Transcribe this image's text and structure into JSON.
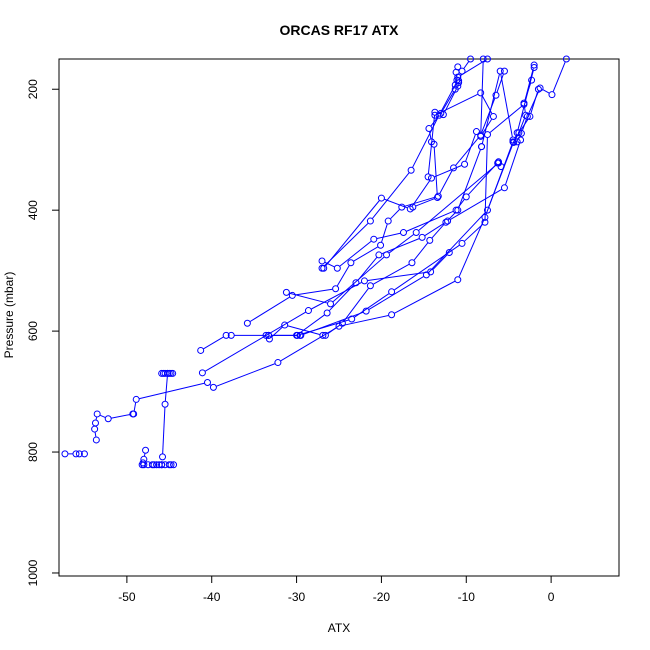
{
  "chart_data": {
    "type": "line",
    "title": "ORCAS RF17 ATX",
    "xlabel": "ATX",
    "ylabel": "Pressure (mbar)",
    "xlim": [
      -58,
      8
    ],
    "ylim": [
      1005,
      150
    ],
    "y_reversed": true,
    "x_ticks": [
      -50,
      -40,
      -30,
      -20,
      -10,
      0
    ],
    "x_tick_labels": [
      "-50",
      "-40",
      "-30",
      "-20",
      "-10",
      "0"
    ],
    "y_ticks": [
      200,
      400,
      600,
      800,
      1000
    ],
    "y_tick_labels": [
      "200",
      "400",
      "600",
      "800",
      "1000"
    ],
    "series_color": "#0000ff",
    "marker": "open-circle",
    "grid": false,
    "series": [
      {
        "x": [
          -45.9,
          -45.5,
          -45.0,
          -44.8,
          -44.5
        ],
        "y": [
          821,
          821,
          821,
          821,
          821
        ]
      },
      {
        "x": [
          -48.0,
          -47.5,
          -47.0,
          -46.8,
          -46.5,
          -46.2,
          -45.9
        ],
        "y": [
          821,
          821,
          821,
          821,
          821,
          821,
          821
        ]
      },
      {
        "x": [
          -55.0,
          -55.6,
          -56.0,
          -57.3
        ],
        "y": [
          803,
          803,
          803,
          803
        ]
      },
      {
        "x": [
          -47.8,
          -48.0,
          -48.1,
          -48.2
        ],
        "y": [
          797,
          812,
          818,
          821
        ]
      },
      {
        "x": [
          -45.8,
          -45.5,
          -45.2,
          -45.0,
          -44.8,
          -44.6
        ],
        "y": [
          808,
          721,
          670,
          670,
          670,
          670
        ]
      },
      {
        "x": [
          -45.9,
          -45.7,
          -45.5,
          -45.2
        ],
        "y": [
          670,
          670,
          670,
          670
        ]
      },
      {
        "x": [
          -53.6,
          -53.8,
          -53.7,
          -53.5,
          -52.2,
          -49.3,
          -49.2,
          -48.9,
          -40.5,
          -39.8,
          -32.2,
          -25.0,
          -18.8,
          -11.0,
          -7.8,
          -4.5,
          -2.5,
          -1.5
        ],
        "y": [
          780,
          762,
          752,
          737,
          745,
          737,
          737,
          713,
          685,
          693,
          652,
          592,
          573,
          515,
          412,
          287,
          245,
          200
        ]
      },
      {
        "x": [
          -41.1,
          -28.6,
          -22.0,
          -14.2,
          -12.0
        ],
        "y": [
          669,
          566,
          517,
          502,
          470
        ]
      },
      {
        "x": [
          -41.3,
          -38.3,
          -37.7,
          -33.3,
          -29.5,
          -21.8,
          -14.7,
          -7.5,
          -4.0,
          -2.0
        ],
        "y": [
          632,
          607,
          607,
          607,
          607,
          567,
          507,
          400,
          272,
          164
        ]
      },
      {
        "x": [
          -33.6,
          -33.3,
          -29.6,
          -29.9,
          -23.5,
          -18.8,
          -10.5,
          -7.8,
          -7.5,
          -3.2,
          -2.0
        ],
        "y": [
          607,
          607,
          607,
          607,
          580,
          535,
          455,
          420,
          275,
          225,
          160
        ]
      },
      {
        "x": [
          -33.2,
          -31.4,
          -26.9,
          -26.6,
          -24.6,
          -21.3,
          -16.4,
          -14.3,
          -12.4,
          -11.0,
          -8.2
        ],
        "y": [
          613,
          590,
          607,
          607,
          587,
          525,
          487,
          450,
          420,
          400,
          295
        ]
      },
      {
        "x": [
          -35.8,
          -30.5,
          -25.4,
          -23.6,
          -20.1,
          -19.2,
          -17.6,
          -13.3,
          -11.5,
          -8.3,
          -6.5,
          -5.5
        ],
        "y": [
          587,
          541,
          530,
          487,
          458,
          418,
          395,
          377,
          330,
          276,
          210,
          170
        ]
      },
      {
        "x": [
          -30.0,
          -26.4,
          -23.0,
          -20.3,
          -15.2,
          -12.2,
          -5.5,
          -3.6
        ],
        "y": [
          607,
          570,
          520,
          474,
          445,
          418,
          363,
          284
        ]
      },
      {
        "x": [
          -31.2,
          -26.0,
          -19.4,
          -15.9,
          -6.2,
          -5.9
        ],
        "y": [
          536,
          555,
          474,
          437,
          322,
          328
        ]
      },
      {
        "x": [
          -27.0,
          -25.2,
          -20.9,
          -17.4,
          -11.2,
          -10.0,
          -6.2,
          -6.3
        ],
        "y": [
          484,
          496,
          448,
          437,
          400,
          378,
          320,
          322
        ]
      },
      {
        "x": [
          -26.8,
          -20.0,
          -16.6,
          -14.1,
          -10.2,
          -8.8
        ],
        "y": [
          496,
          380,
          398,
          347,
          324,
          270
        ]
      },
      {
        "x": [
          -27.0,
          -21.3,
          -16.5,
          -13.2,
          -11.3,
          -11.1,
          -10.9,
          -10.5,
          -9.5
        ],
        "y": [
          496,
          418,
          334,
          243,
          193,
          185,
          189,
          170,
          150
        ]
      },
      {
        "x": [
          -16.3,
          -13.4,
          -13.8,
          -14.1,
          -14.4,
          -13.0,
          -11.3,
          -11.0,
          -7.5
        ],
        "y": [
          395,
          379,
          291,
          287,
          265,
          240,
          200,
          180,
          150
        ]
      },
      {
        "x": [
          -14.5,
          -13.7,
          -12.7,
          -11.0,
          -10.9,
          -11.1,
          -11.2,
          -11.0
        ],
        "y": [
          345,
          238,
          242,
          195,
          186,
          185,
          172,
          163
        ]
      },
      {
        "x": [
          -13.7,
          -8.3,
          -6.8,
          -8.3,
          -8.0
        ],
        "y": [
          243,
          206,
          245,
          278,
          150
        ]
      },
      {
        "x": [
          -8.2,
          -6.0,
          -4.5,
          -4.4,
          -3.8,
          -3.0,
          -3.2,
          -2.3
        ],
        "y": [
          295,
          170,
          284,
          288,
          272,
          243,
          223,
          185
        ]
      },
      {
        "x": [
          -4.0,
          -3.5,
          -2.8,
          -1.3,
          0.1,
          1.8
        ],
        "y": [
          287,
          273,
          245,
          198,
          209,
          150
        ]
      }
    ]
  }
}
